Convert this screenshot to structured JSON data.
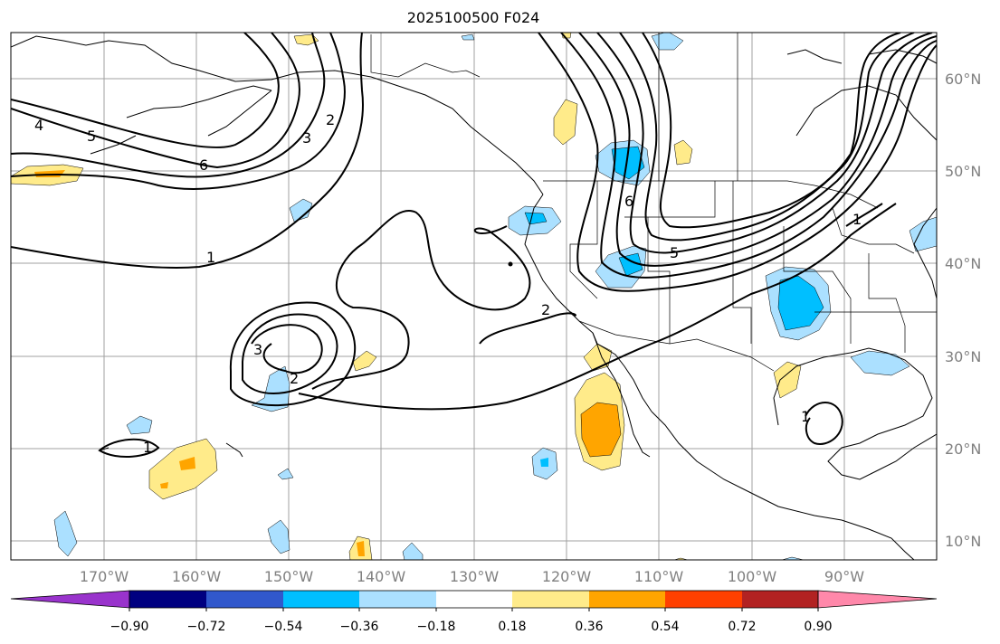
{
  "title": "2025100500 F024",
  "longitude_labels": [
    "170°W",
    "160°W",
    "150°W",
    "140°W",
    "130°W",
    "120°W",
    "110°W",
    "100°W",
    "90°W"
  ],
  "latitude_labels": [
    "60°N",
    "50°N",
    "40°N",
    "30°N",
    "20°N",
    "10°N"
  ],
  "colorbar": {
    "colors": [
      "#9933cc",
      "#000080",
      "#3158cc",
      "#00bfff",
      "#abe0ff",
      "#ffffff",
      "#ffeb8a",
      "#ffa500",
      "#ff4000",
      "#b22222",
      "#ff88aa"
    ],
    "tick_labels": [
      "−0.90",
      "−0.72",
      "−0.54",
      "−0.36",
      "−0.18",
      "0.18",
      "0.36",
      "0.54",
      "0.72",
      "0.90"
    ]
  },
  "contour_labels": [
    "4",
    "5",
    "6",
    "3",
    "2",
    "1",
    "3",
    "2",
    "2",
    "1",
    "1",
    "6",
    "5",
    "1"
  ],
  "colors": {
    "grid": "#a0a0a0",
    "coast": "#000000",
    "light_blue": "#abe0ff",
    "blue": "#00bfff",
    "light_yellow": "#ffeb8a",
    "orange": "#ffa500"
  }
}
